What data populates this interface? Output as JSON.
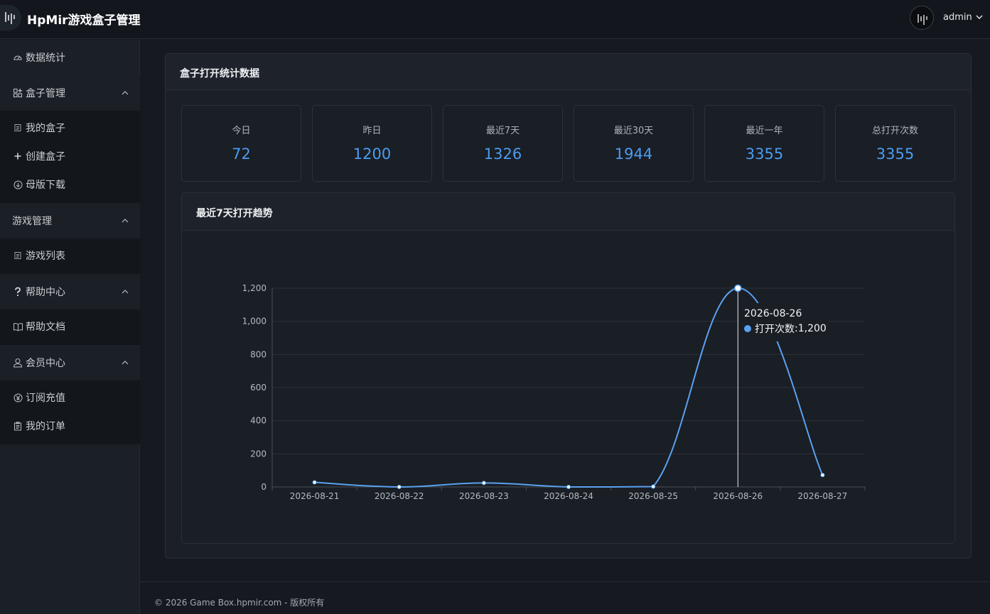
{
  "header": {
    "app_title": "HpMir游戏盒子管理",
    "user_name": "admin"
  },
  "sidebar": {
    "dashboard": {
      "label": "数据统计",
      "icon": "gauge-icon"
    },
    "groups": [
      {
        "label": "盒子管理",
        "icon": "apps-icon",
        "expanded": true,
        "items": [
          {
            "label": "我的盒子",
            "icon": "document-icon"
          },
          {
            "label": "创建盒子",
            "icon": "plus-icon"
          },
          {
            "label": "母版下载",
            "icon": "download-icon"
          }
        ]
      },
      {
        "label": "游戏管理",
        "icon": "",
        "expanded": true,
        "items": [
          {
            "label": "游戏列表",
            "icon": "document-icon"
          }
        ]
      },
      {
        "label": "帮助中心",
        "icon": "question-icon",
        "expanded": true,
        "items": [
          {
            "label": "帮助文档",
            "icon": "book-icon"
          }
        ]
      },
      {
        "label": "会员中心",
        "icon": "user-icon",
        "expanded": true,
        "items": [
          {
            "label": "订阅充值",
            "icon": "yen-icon"
          },
          {
            "label": "我的订单",
            "icon": "clipboard-icon"
          }
        ]
      }
    ]
  },
  "panel": {
    "title": "盒子打开统计数据"
  },
  "stats": [
    {
      "label": "今日",
      "value": "72"
    },
    {
      "label": "昨日",
      "value": "1200"
    },
    {
      "label": "最近7天",
      "value": "1326"
    },
    {
      "label": "最近30天",
      "value": "1944"
    },
    {
      "label": "最近一年",
      "value": "3355"
    },
    {
      "label": "总打开次数",
      "value": "3355"
    }
  ],
  "chart_card": {
    "title": "最近7天打开趋势"
  },
  "chart_data": {
    "type": "line",
    "categories": [
      "2026-08-21",
      "2026-08-22",
      "2026-08-23",
      "2026-08-24",
      "2026-08-25",
      "2026-08-26",
      "2026-08-27"
    ],
    "series": [
      {
        "name": "打开次数",
        "values": [
          28,
          0,
          24,
          0,
          2,
          1200,
          72
        ]
      }
    ],
    "ylim": [
      0,
      1200
    ],
    "yticks": [
      0,
      200,
      400,
      600,
      800,
      1000,
      1200
    ],
    "ytick_labels": [
      "0",
      "200",
      "400",
      "600",
      "800",
      "1,000",
      "1,200"
    ],
    "smooth": true,
    "grid": true,
    "line_color": "#5aa1f0",
    "tooltip": {
      "category": "2026-08-26",
      "series_label": "打开次数",
      "value_label": "1,200"
    }
  },
  "footer": {
    "text": "© 2026 Game Box.hpmir.com - 版权所有"
  },
  "colors": {
    "accent": "#4b9cf0",
    "background": "#161a20"
  }
}
